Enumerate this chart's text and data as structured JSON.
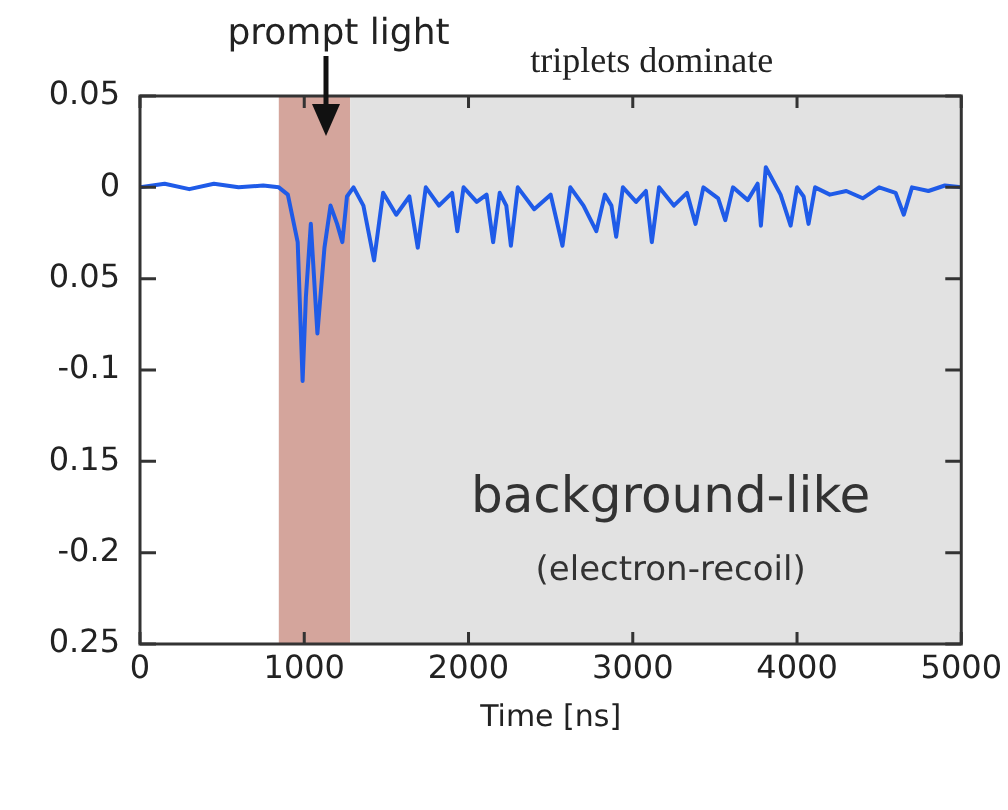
{
  "chart_data": {
    "type": "line",
    "xlabel": "Time [ns]",
    "x": [
      0,
      150,
      300,
      450,
      600,
      750,
      845,
      900,
      960,
      990,
      1010,
      1040,
      1080,
      1123,
      1160,
      1200,
      1232,
      1260,
      1300,
      1360,
      1425,
      1480,
      1560,
      1640,
      1691,
      1740,
      1820,
      1900,
      1932,
      1970,
      2050,
      2110,
      2150,
      2190,
      2230,
      2258,
      2300,
      2400,
      2500,
      2572,
      2620,
      2700,
      2778,
      2830,
      2870,
      2899,
      2940,
      3020,
      3080,
      3116,
      3160,
      3250,
      3330,
      3382,
      3430,
      3520,
      3563,
      3610,
      3700,
      3760,
      3780,
      3810,
      3900,
      3961,
      4000,
      4040,
      4070,
      4110,
      4200,
      4300,
      4400,
      4500,
      4600,
      4650,
      4700,
      4800,
      4900,
      5000
    ],
    "series": [
      {
        "color": "#1f5be8",
        "values": [
          0,
          0.002,
          -0.001,
          0.002,
          0,
          0.001,
          0,
          -0.004,
          -0.03,
          -0.106,
          -0.06,
          -0.02,
          -0.08,
          -0.033,
          -0.01,
          -0.02,
          -0.03,
          -0.005,
          0,
          -0.01,
          -0.04,
          -0.003,
          -0.015,
          -0.005,
          -0.033,
          0,
          -0.01,
          -0.003,
          -0.024,
          0,
          -0.008,
          -0.004,
          -0.03,
          -0.003,
          -0.01,
          -0.032,
          0,
          -0.012,
          -0.004,
          -0.032,
          0,
          -0.01,
          -0.024,
          -0.004,
          -0.01,
          -0.027,
          0,
          -0.008,
          -0.002,
          -0.03,
          0,
          -0.01,
          -0.003,
          -0.02,
          0,
          -0.006,
          -0.018,
          0,
          -0.007,
          0.002,
          -0.021,
          0.011,
          -0.004,
          -0.021,
          0,
          -0.005,
          -0.02,
          0,
          -0.004,
          -0.002,
          -0.006,
          0,
          -0.003,
          -0.015,
          0,
          -0.002,
          0.001,
          0
        ]
      }
    ],
    "xlim": [
      0,
      5000
    ],
    "xticks": [
      0,
      1000,
      2000,
      3000,
      4000,
      5000
    ],
    "ylim": [
      -0.25,
      0.05
    ],
    "yticks": [
      0.05,
      0,
      {
        "value": -0.05,
        "label": "0.05"
      },
      -0.1,
      {
        "value": -0.15,
        "label": "0.15"
      },
      -0.2,
      {
        "value": -0.25,
        "label": "0.25"
      }
    ],
    "bands": [
      {
        "axis": "x",
        "from": 845,
        "to": 1280,
        "label": "prompt light",
        "color": "#d4a59c"
      },
      {
        "axis": "x",
        "from": 1280,
        "to": 5000,
        "label": "triplets dominate",
        "color": "#e2e2e2"
      }
    ],
    "annotations": [
      "background-like",
      "(electron-recoil)"
    ],
    "grid": false,
    "legend": false,
    "marker": "none",
    "line_style": "solid"
  }
}
